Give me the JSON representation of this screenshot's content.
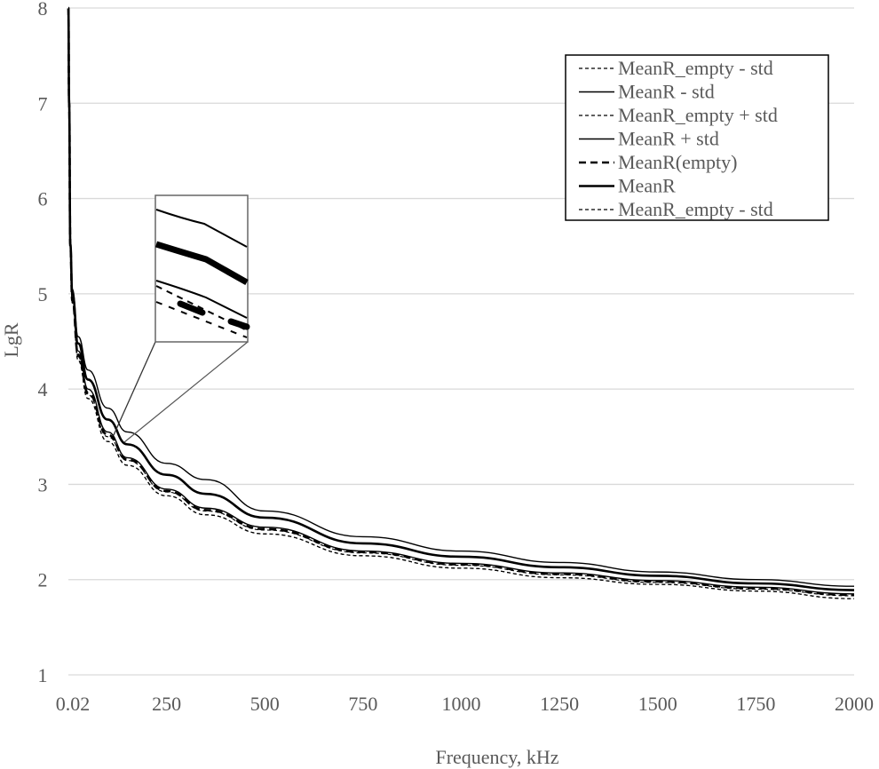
{
  "chart_data": {
    "type": "line",
    "title": "",
    "xlabel": "Frequency, kHz",
    "ylabel": "LgR",
    "xlim": [
      0.02,
      2000
    ],
    "ylim": [
      1,
      8
    ],
    "x_ticks": [
      "0.02",
      "250",
      "500",
      "750",
      "1000",
      "1250",
      "1500",
      "1750",
      "2000"
    ],
    "y_ticks": [
      "1",
      "2",
      "3",
      "4",
      "5",
      "6",
      "7",
      "8"
    ],
    "grid": "horizontal",
    "legend_position": "upper-right",
    "x": [
      0.02,
      2,
      5,
      10,
      25,
      50,
      100,
      150,
      250,
      350,
      500,
      750,
      1000,
      1250,
      1500,
      1750,
      2000
    ],
    "series": [
      {
        "name": "MeanR_empty - std",
        "style": "dotted-thin",
        "values": [
          8.0,
          7.0,
          5.5,
          4.9,
          4.3,
          3.9,
          3.45,
          3.2,
          2.88,
          2.68,
          2.48,
          2.25,
          2.12,
          2.02,
          1.95,
          1.88,
          1.8
        ]
      },
      {
        "name": "MeanR - std",
        "style": "solid-thin",
        "values": [
          8.0,
          7.0,
          5.5,
          4.95,
          4.4,
          4.0,
          3.55,
          3.28,
          2.95,
          2.75,
          2.55,
          2.3,
          2.17,
          2.07,
          1.99,
          1.92,
          1.85
        ]
      },
      {
        "name": "MeanR_empty + std",
        "style": "dotted-thin",
        "values": [
          8.0,
          7.0,
          5.5,
          4.92,
          4.34,
          3.94,
          3.5,
          3.25,
          2.92,
          2.72,
          2.52,
          2.28,
          2.15,
          2.05,
          1.97,
          1.9,
          1.83
        ]
      },
      {
        "name": "MeanR + std",
        "style": "solid-thin",
        "values": [
          8.0,
          7.0,
          5.55,
          5.05,
          4.55,
          4.2,
          3.8,
          3.55,
          3.22,
          3.05,
          2.72,
          2.45,
          2.3,
          2.18,
          2.08,
          2.0,
          1.93
        ]
      },
      {
        "name": "MeanR(empty)",
        "style": "dashed-thick",
        "values": [
          8.0,
          7.0,
          5.5,
          4.93,
          4.36,
          3.96,
          3.52,
          3.26,
          2.93,
          2.73,
          2.53,
          2.29,
          2.16,
          2.06,
          1.98,
          1.91,
          1.84
        ]
      },
      {
        "name": "MeanR",
        "style": "solid-thick",
        "values": [
          8.0,
          7.0,
          5.52,
          5.0,
          4.48,
          4.1,
          3.68,
          3.42,
          3.1,
          2.9,
          2.65,
          2.38,
          2.24,
          2.13,
          2.04,
          1.96,
          1.89
        ]
      },
      {
        "name": "MeanR_empty - std",
        "style": "dotted-thin",
        "values": [
          8.0,
          7.0,
          5.5,
          4.9,
          4.3,
          3.9,
          3.45,
          3.2,
          2.88,
          2.68,
          2.48,
          2.25,
          2.12,
          2.02,
          1.95,
          1.88,
          1.8
        ]
      }
    ],
    "annotations": [
      {
        "type": "zoom-inset",
        "description": "Magnified inset of curves near ~150 kHz, LgR ~3.4"
      }
    ]
  },
  "legend": {
    "items": [
      {
        "label": "MeanR_empty - std",
        "style": "dotted-thin"
      },
      {
        "label": "MeanR - std",
        "style": "solid-thin"
      },
      {
        "label": "MeanR_empty + std",
        "style": "dotted-thin"
      },
      {
        "label": "MeanR + std",
        "style": "solid-thin"
      },
      {
        "label": "MeanR(empty)",
        "style": "dashed-thick"
      },
      {
        "label": "MeanR",
        "style": "solid-thick"
      },
      {
        "label": "MeanR_empty - std",
        "style": "dotted-thin"
      }
    ]
  },
  "colors": {
    "gridline": "#d9d9d9",
    "text": "#595959",
    "series": "#000000"
  }
}
